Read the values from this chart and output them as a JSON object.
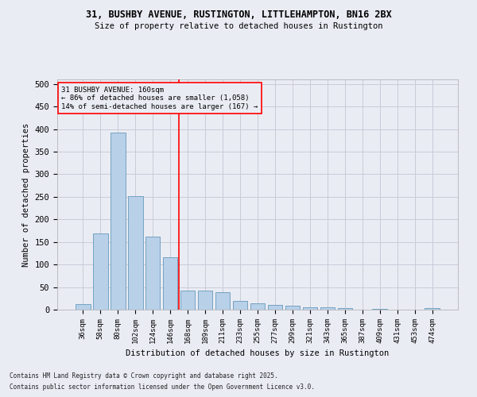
{
  "title1": "31, BUSHBY AVENUE, RUSTINGTON, LITTLEHAMPTON, BN16 2BX",
  "title2": "Size of property relative to detached houses in Rustington",
  "xlabel": "Distribution of detached houses by size in Rustington",
  "ylabel": "Number of detached properties",
  "footnote1": "Contains HM Land Registry data © Crown copyright and database right 2025.",
  "footnote2": "Contains public sector information licensed under the Open Government Licence v3.0.",
  "categories": [
    "36sqm",
    "58sqm",
    "80sqm",
    "102sqm",
    "124sqm",
    "146sqm",
    "168sqm",
    "189sqm",
    "211sqm",
    "233sqm",
    "255sqm",
    "277sqm",
    "299sqm",
    "321sqm",
    "343sqm",
    "365sqm",
    "387sqm",
    "409sqm",
    "431sqm",
    "453sqm",
    "474sqm"
  ],
  "values": [
    12,
    168,
    393,
    252,
    161,
    116,
    42,
    42,
    38,
    19,
    14,
    10,
    8,
    5,
    5,
    3,
    0,
    2,
    0,
    0,
    3
  ],
  "bar_color": "#b8d0e8",
  "bar_edge_color": "#6699bb",
  "grid_color": "#c8ccd8",
  "bg_color": "#eaecf4",
  "reference_line_color": "red",
  "annotation_text": "31 BUSHBY AVENUE: 160sqm\n← 86% of detached houses are smaller (1,058)\n14% of semi-detached houses are larger (167) →",
  "annotation_box_color": "red",
  "ylim": [
    0,
    510
  ],
  "yticks": [
    0,
    50,
    100,
    150,
    200,
    250,
    300,
    350,
    400,
    450,
    500
  ]
}
